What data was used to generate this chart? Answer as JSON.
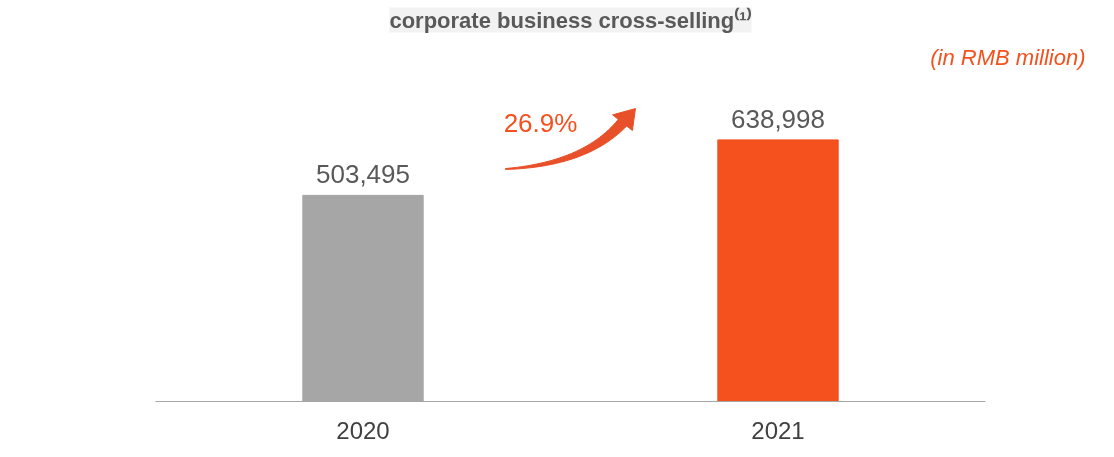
{
  "chart_data": {
    "type": "bar",
    "title": "corporate business cross-selling⁽¹⁾",
    "categories": [
      "2020",
      "2021"
    ],
    "values": [
      503495,
      638998
    ],
    "colors": [
      "#a6a6a6",
      "#f4511e"
    ],
    "value_labels": [
      "503,495",
      "638,998"
    ],
    "annotations": [
      "26.9%",
      "(in RMB million)"
    ]
  }
}
